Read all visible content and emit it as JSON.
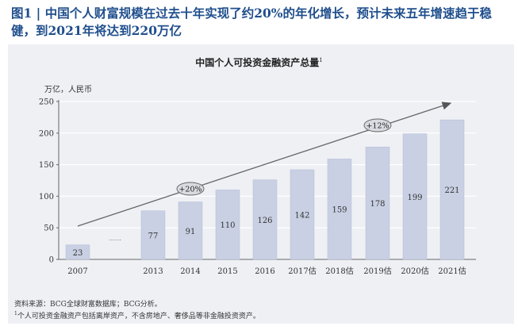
{
  "heading": {
    "line1": "图1 | 中国个人财富规模在过去十年实现了约20%的年化增长，预计未来五年增速趋于稳",
    "line2": "健，到2021年将达到220万亿"
  },
  "chart_data": {
    "type": "bar",
    "title": "中国个人可投资金融资产总量",
    "title_superscript": "1",
    "ylabel": "万亿，人民币",
    "xlabel": "",
    "ylim": [
      0,
      250
    ],
    "yticks": [
      0,
      50,
      100,
      150,
      200,
      250
    ],
    "categories": [
      "2007",
      "2013",
      "2014",
      "2015",
      "2016",
      "2017估",
      "2018估",
      "2019估",
      "2020估",
      "2021估"
    ],
    "values": [
      23,
      77,
      91,
      110,
      126,
      142,
      159,
      178,
      199,
      221
    ],
    "grid": true,
    "bar_color": "#c9d0e3",
    "gap_marker": "……",
    "annotations": [
      {
        "label": "+20%",
        "from": "2007",
        "to": "2016"
      },
      {
        "label": "+12%",
        "from": "2016",
        "to": "2021估"
      }
    ]
  },
  "footnote": {
    "source": "资料来源：BCG全球财富数据库；BCG分析。",
    "note_marker": "1",
    "note": "个人可投资金融资产包括离岸资产，不含房地产、奢侈品等非金融投资资产。"
  }
}
